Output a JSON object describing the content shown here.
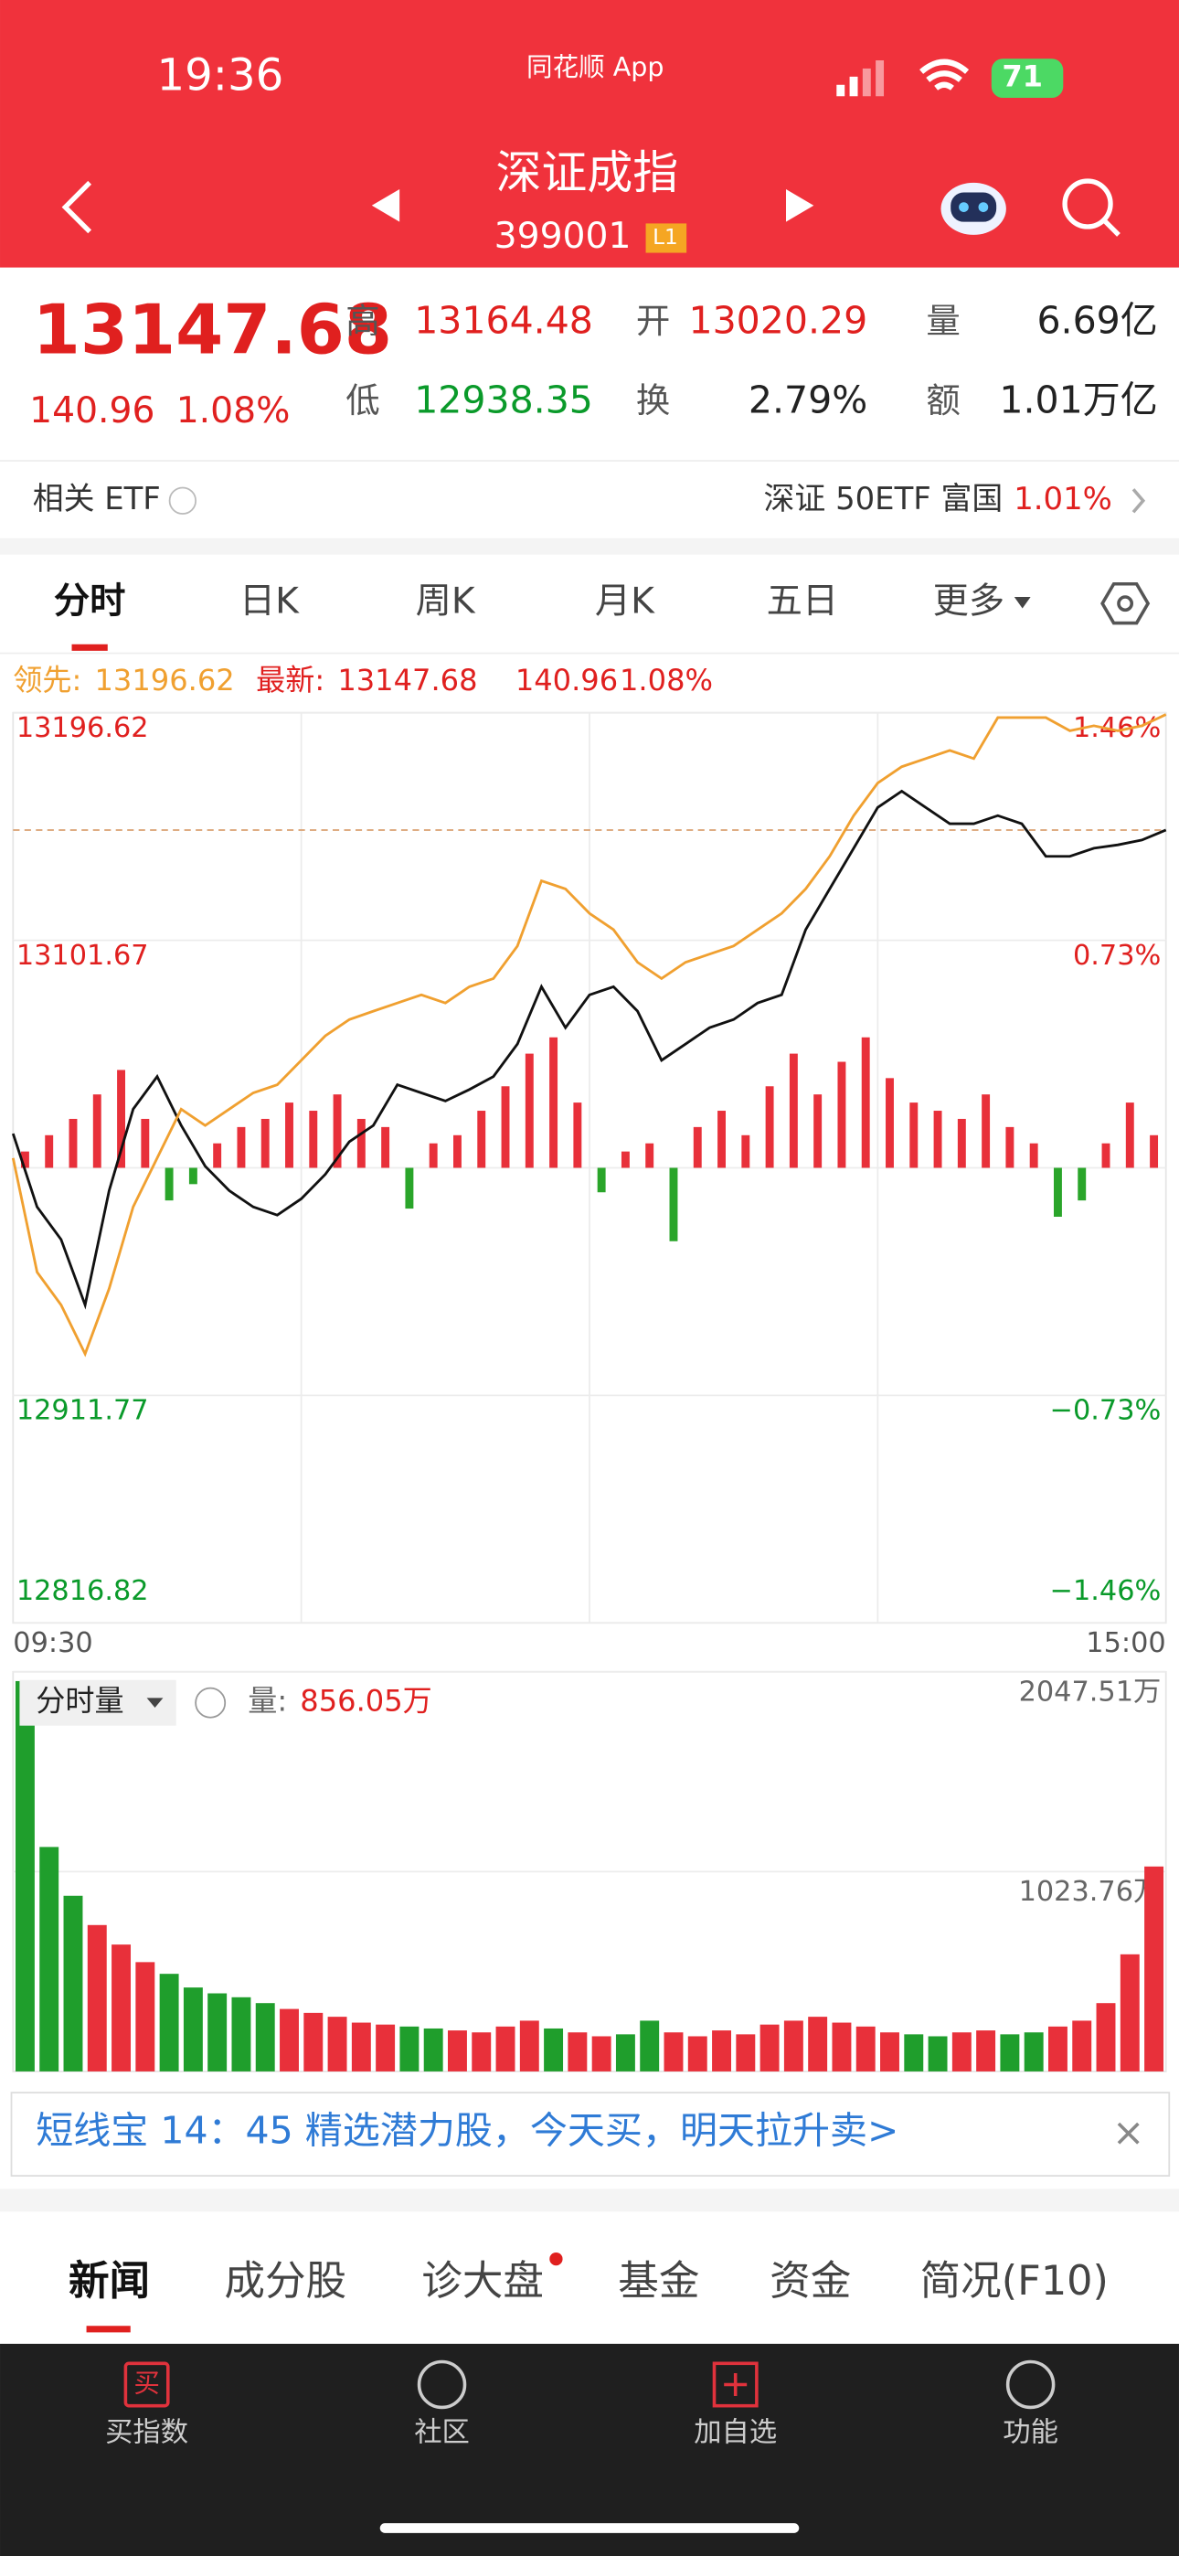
{
  "status": {
    "time": "19:36",
    "app": "同花顺 App",
    "battery": "71"
  },
  "header": {
    "title": "深证成指",
    "code": "399001",
    "badge": "L1"
  },
  "quote": {
    "price": "13147.68",
    "change": "140.96",
    "change_pct": "1.08%",
    "fields": [
      {
        "label": "高",
        "value": "13164.48",
        "color": "#e0201f"
      },
      {
        "label": "开",
        "value": "13020.29",
        "color": "#e0201f"
      },
      {
        "label": "量",
        "value": "6.69亿",
        "color": "#222222"
      },
      {
        "label": "低",
        "value": "12938.35",
        "color": "#0a9a2a"
      },
      {
        "label": "换",
        "value": "2.79%",
        "color": "#222222"
      },
      {
        "label": "额",
        "value": "1.01万亿",
        "color": "#222222"
      }
    ]
  },
  "etf": {
    "label": "相关 ETF",
    "name": "深证 50ETF 富国",
    "change": "1.01%"
  },
  "tabs": [
    "分时",
    "日K",
    "周K",
    "月K",
    "五日",
    "更多"
  ],
  "info": {
    "lead_label": "领先:",
    "lead_value": "13196.62",
    "latest_label": "最新:",
    "latest_value": "13147.68",
    "latest_change": "140.96",
    "latest_pct": "1.08%"
  },
  "chart_data": [
    {
      "type": "line",
      "series": [
        {
          "color": "#111111",
          "values": [
            13021.0,
            12990.4,
            12976.8,
            12949.5,
            12997.2,
            13031.2,
            13044.8,
            13024.4,
            13007.4,
            12997.2,
            12990.4,
            12987.0,
            12993.8,
            13004.0,
            13017.6,
            13024.4,
            13041.4,
            13038.0,
            13034.6,
            13039.4,
            13044.8,
            13058.4,
            13082.3,
            13065.2,
            13078.9,
            13082.3,
            13072.1,
            13051.6,
            13058.4,
            13065.2,
            13068.6,
            13075.5,
            13078.9,
            13106.1,
            13123.1,
            13140.1,
            13157.1,
            13163.9,
            13157.1,
            13150.3,
            13150.3,
            13153.7,
            13150.3,
            13136.7,
            13136.7,
            13140.1,
            13141.5,
            13143.5,
            13147.68
          ]
        },
        {
          "color": "#f0a030",
          "values": [
            13010.8,
            12963.2,
            12949.5,
            12929.1,
            12956.3,
            12990.4,
            13010.8,
            13031.2,
            13024.4,
            13031.2,
            13038.0,
            13041.4,
            13051.6,
            13061.8,
            13068.6,
            13072.1,
            13075.5,
            13078.9,
            13075.5,
            13082.3,
            13085.7,
            13099.3,
            13126.5,
            13123.1,
            13112.9,
            13106.1,
            13092.5,
            13085.7,
            13092.5,
            13095.9,
            13099.3,
            13106.1,
            13112.9,
            13123.1,
            13136.7,
            13153.7,
            13167.3,
            13174.1,
            13177.5,
            13180.9,
            13177.5,
            13194.6,
            13194.6,
            13194.6,
            13189.1,
            13191.2,
            13189.1,
            13191.2,
            13195.9
          ]
        }
      ],
      "ylim": [
        12816.82,
        13196.62
      ],
      "yticks": [
        13196.62,
        13101.67,
        12911.77,
        12816.82
      ],
      "y2lim": [
        -1.46,
        1.46
      ],
      "y2ticks": [
        {
          "value": 1.46,
          "label": "1.46%"
        },
        {
          "value": 0.73,
          "label": "0.73%"
        },
        {
          "value": -0.73,
          "label": "−0.73%"
        },
        {
          "value": -1.46,
          "label": "−1.46%"
        }
      ],
      "reference_line": 13147.68,
      "xlabels": [
        "09:30",
        "15:00"
      ],
      "bars": {
        "values": [
          10,
          20,
          30,
          45,
          60,
          30,
          -20,
          -10,
          15,
          25,
          30,
          40,
          35,
          45,
          30,
          25,
          -25,
          15,
          20,
          35,
          50,
          70,
          80,
          40,
          -15,
          10,
          15,
          -45,
          25,
          35,
          20,
          50,
          70,
          45,
          65,
          80,
          55,
          40,
          35,
          30,
          45,
          25,
          15,
          -30,
          -20,
          15,
          40,
          20
        ],
        "ylim": [
          -279,
          279
        ],
        "up_color": "#e8303a",
        "down_color": "#2aa52a"
      }
    },
    {
      "type": "bar",
      "title": "分时量",
      "label": "量:",
      "value_label": "856.05万",
      "values": [
        2000,
        1150,
        900,
        750,
        650,
        560,
        500,
        430,
        400,
        380,
        350,
        320,
        300,
        280,
        250,
        240,
        230,
        220,
        210,
        200,
        230,
        260,
        220,
        200,
        180,
        190,
        260,
        200,
        180,
        210,
        190,
        240,
        260,
        280,
        250,
        230,
        200,
        190,
        180,
        200,
        210,
        190,
        200,
        230,
        260,
        350,
        600,
        1050
      ],
      "ylim": [
        0,
        2047.51
      ],
      "yticks": [
        {
          "value": 2047.51,
          "label": "2047.51万"
        },
        {
          "value": 1023.76,
          "label": "1023.76万"
        }
      ],
      "up_color": "#e8303a",
      "down_color": "#1f9e2c"
    }
  ],
  "banner": "短线宝 14：45 精选潜力股，今天买，明天拉升卖>",
  "news_tabs": [
    "新闻",
    "成分股",
    "诊大盘",
    "基金",
    "资金",
    "简况(F10)"
  ],
  "nav": [
    {
      "icon": "买",
      "label": "买指数"
    },
    {
      "label": "社区"
    },
    {
      "label": "加自选"
    },
    {
      "label": "功能"
    }
  ]
}
